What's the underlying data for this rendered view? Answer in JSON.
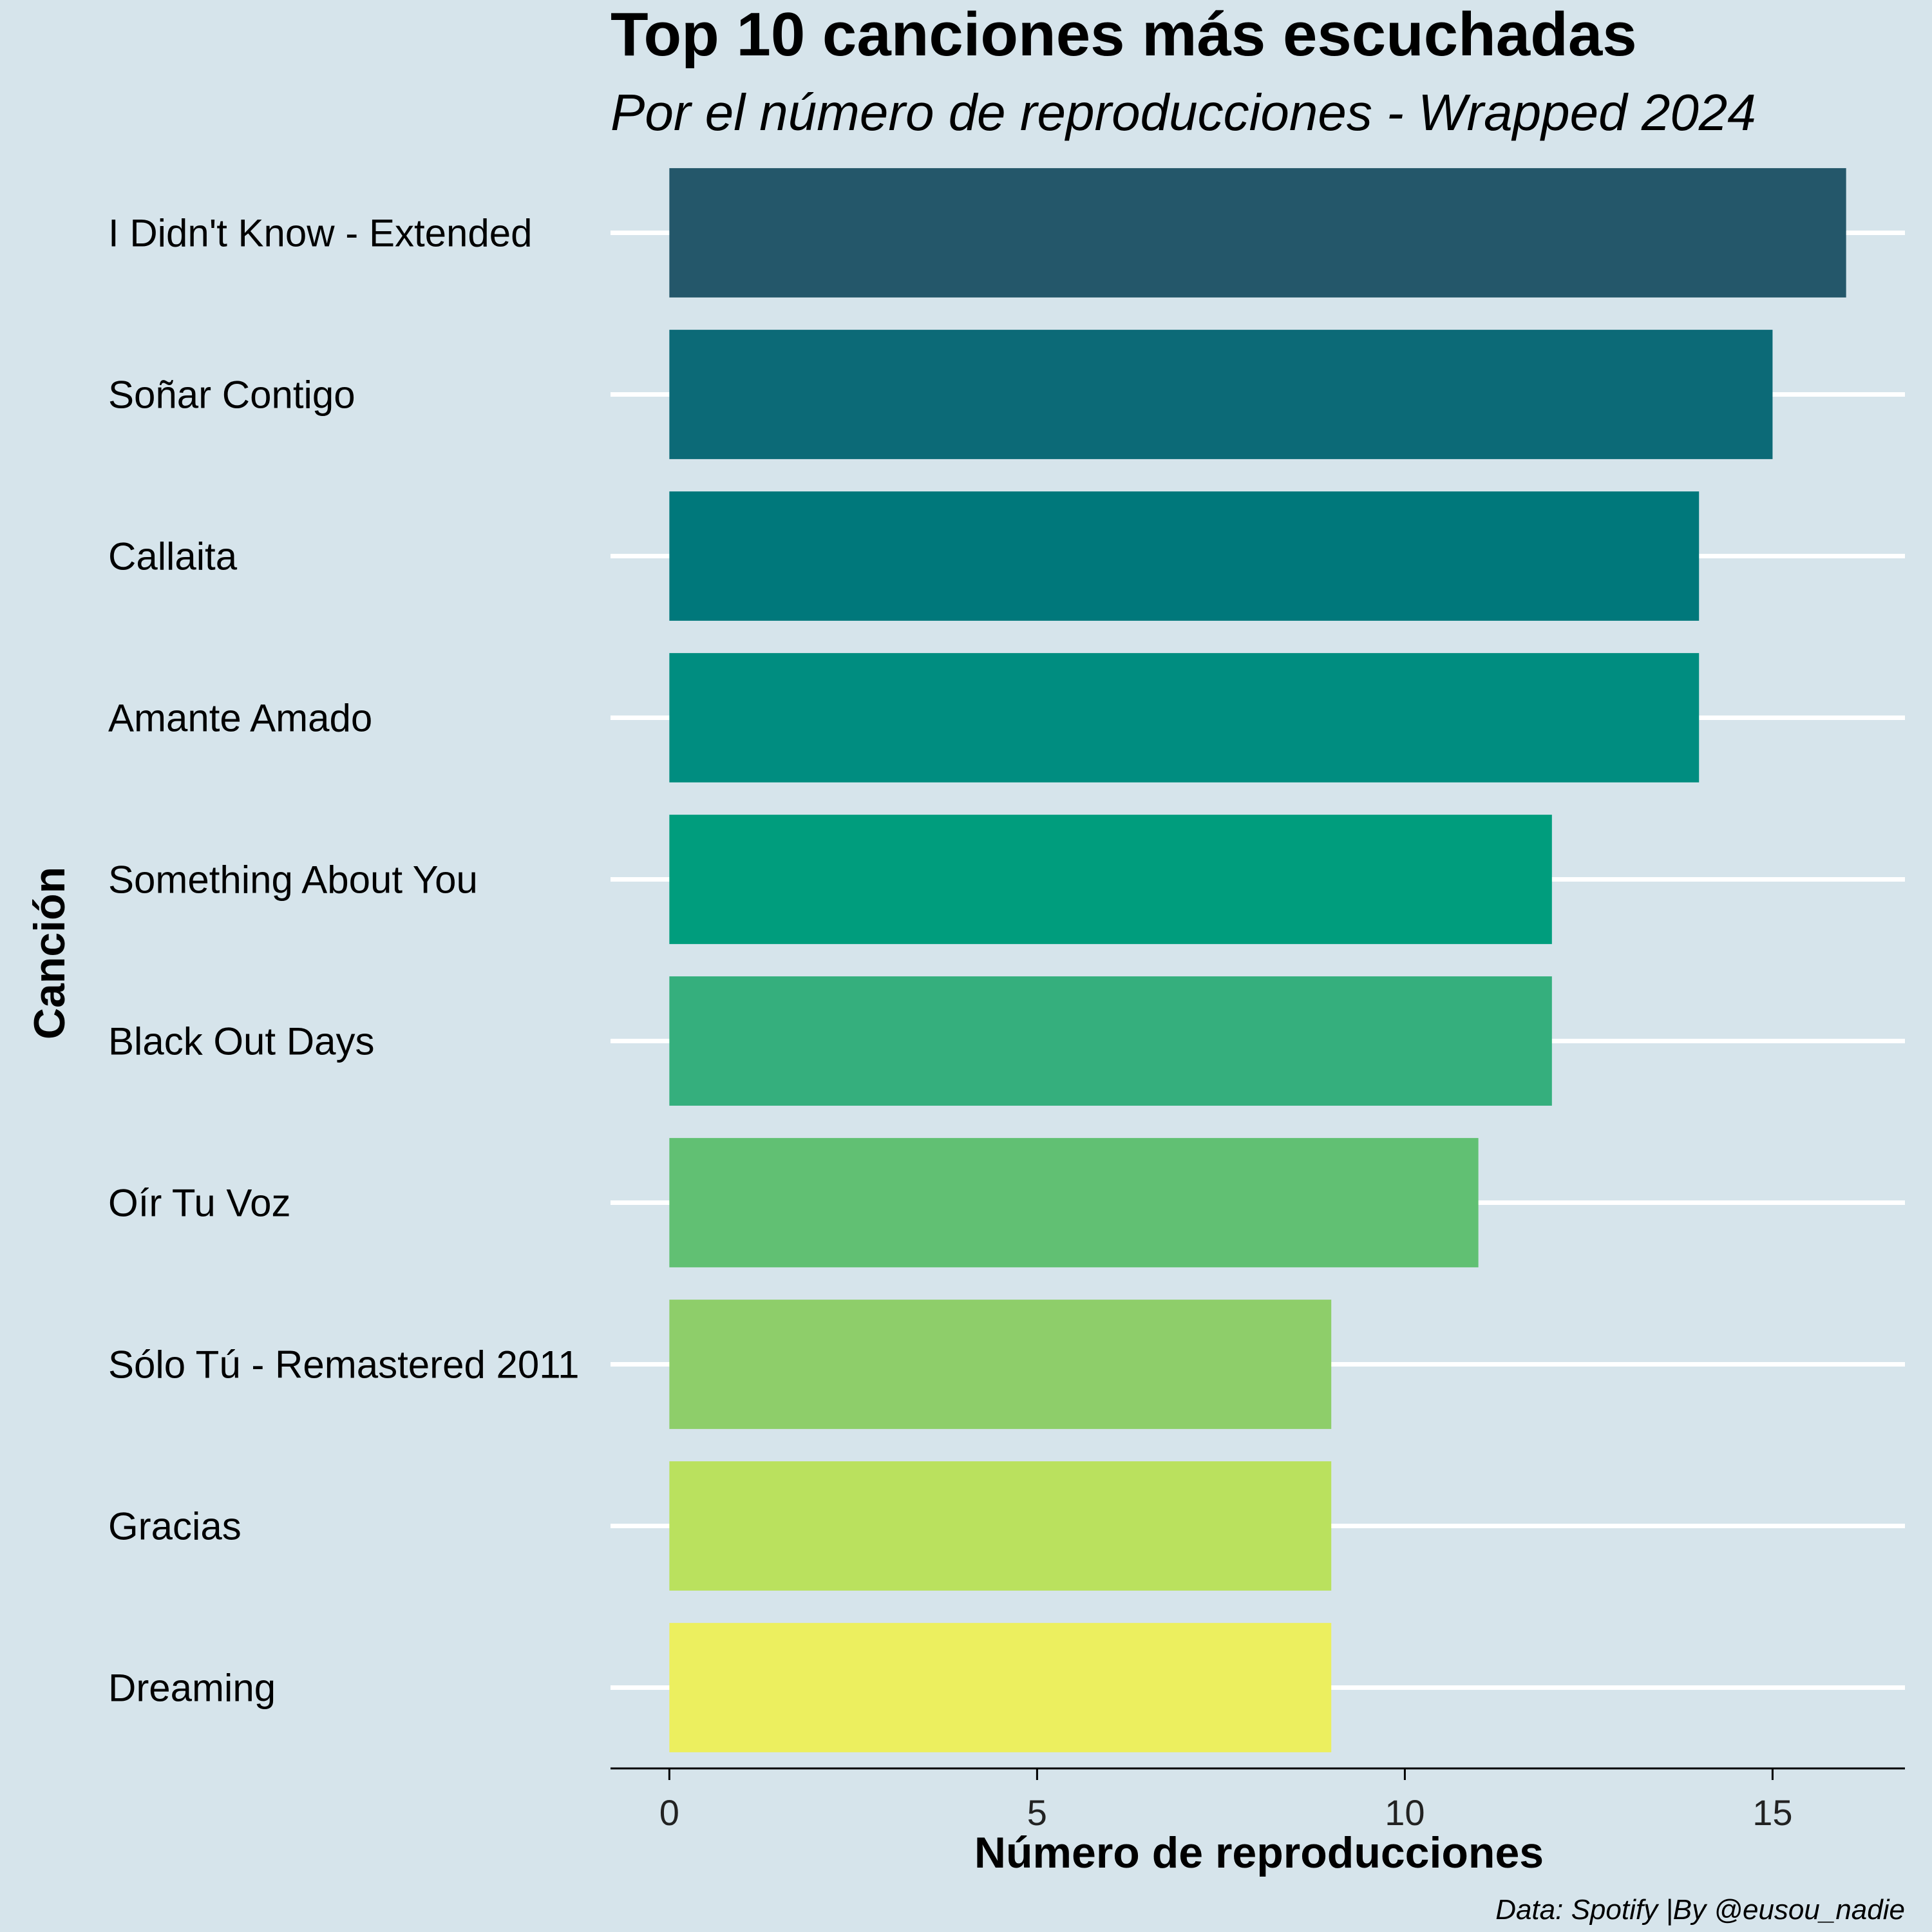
{
  "chart_data": {
    "type": "bar",
    "orientation": "horizontal",
    "title": "Top 10 canciones más escuchadas",
    "subtitle": "Por el número de reproducciones - Wrapped 2024",
    "xlabel": "Número de reproducciones",
    "ylabel": "Canción",
    "caption": "Data: Spotify |By @eusou_nadie",
    "categories": [
      "I Didn't Know - Extended",
      "Soñar Contigo",
      "Callaita",
      "Amante Amado",
      "Something About You",
      "Black Out Days",
      "Oír Tu Voz",
      "Sólo Tú - Remastered 2011",
      "Gracias",
      "Dreaming"
    ],
    "values": [
      16,
      15,
      14,
      14,
      12,
      12,
      11,
      9,
      9,
      9
    ],
    "colors": [
      "#24576a",
      "#0c6a77",
      "#00787b",
      "#008d80",
      "#009d7d",
      "#35af7d",
      "#61c073",
      "#8ece6a",
      "#bae15e",
      "#ecef5f"
    ],
    "xlim": [
      -0.8,
      16.8
    ],
    "xticks": [
      0,
      5,
      10,
      15
    ],
    "xtick_labels": [
      "0",
      "5",
      "10",
      "15"
    ],
    "grid": "horizontal-major",
    "legend": "none",
    "background": "#d6e4eb"
  }
}
